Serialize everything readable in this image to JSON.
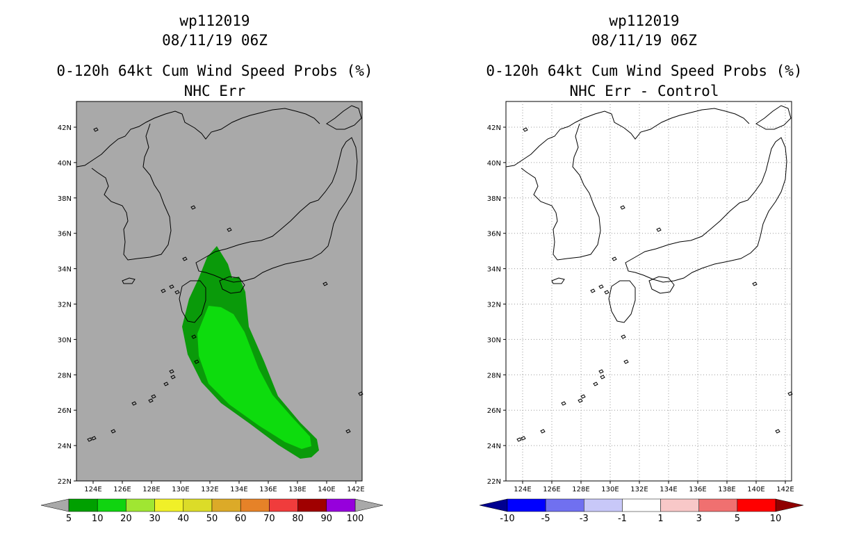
{
  "left_panel": {
    "title_line1": "wp112019",
    "title_line2": "08/11/19 06Z",
    "title_line3": "0-120h 64kt Cum Wind Speed Probs (%)",
    "title_line4": "NHC Err",
    "background_color": "#a9a9a9",
    "probability_region_colors": {
      "5-10": "#0a9a0a",
      "10-20": "#0ddc0d"
    },
    "colorbar": {
      "labels": [
        "5",
        "10",
        "20",
        "30",
        "40",
        "50",
        "60",
        "70",
        "80",
        "90",
        "100"
      ],
      "colors": [
        "#00a000",
        "#10d410",
        "#a0e632",
        "#f0f028",
        "#dcdc28",
        "#dcaa28",
        "#e68228",
        "#f03c3c",
        "#a00000",
        "#9600dc"
      ],
      "under_color": "#a9a9a9",
      "over_color": "#a9a9a9"
    }
  },
  "right_panel": {
    "title_line1": "wp112019",
    "title_line2": "08/11/19 06Z",
    "title_line3": "0-120h 64kt Cum Wind Speed Probs (%)",
    "title_line4": "NHC Err - Control",
    "background_color": "#ffffff",
    "colorbar": {
      "labels": [
        "-10",
        "-5",
        "-3",
        "-1",
        "1",
        "3",
        "5",
        "10"
      ],
      "colors": [
        "#0000ff",
        "#7070f0",
        "#c8c8f8",
        "#ffffff",
        "#f8c8c8",
        "#f07070",
        "#ff0000"
      ],
      "under_color": "#000090",
      "over_color": "#900000"
    }
  },
  "axes": {
    "lat_labels": [
      "22N",
      "24N",
      "26N",
      "28N",
      "30N",
      "32N",
      "34N",
      "36N",
      "38N",
      "40N",
      "42N"
    ],
    "lon_labels": [
      "124E",
      "126E",
      "128E",
      "130E",
      "132E",
      "134E",
      "136E",
      "138E",
      "140E",
      "142E"
    ]
  }
}
